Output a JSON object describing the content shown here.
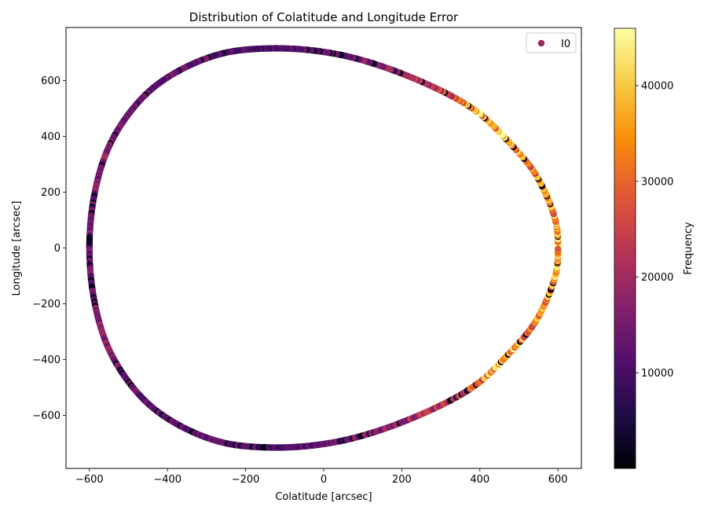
{
  "chart_data": {
    "type": "scatter",
    "title": "Distribution of Colatitude and Longitude Error",
    "xlabel": "Colatitude [arcsec]",
    "ylabel": "Longitude [arcsec]",
    "xlim": [
      -660,
      660
    ],
    "ylim": [
      -790,
      790
    ],
    "xticks": [
      -600,
      -400,
      -200,
      0,
      200,
      400,
      600
    ],
    "yticks": [
      -600,
      -400,
      -200,
      0,
      200,
      400,
      600
    ],
    "xtick_labels": [
      "−600",
      "−400",
      "−200",
      "0",
      "200",
      "400",
      "600"
    ],
    "ytick_labels": [
      "−600",
      "−400",
      "−200",
      "0",
      "200",
      "400",
      "600"
    ],
    "grid": false,
    "legend": {
      "position": "upper-right",
      "entries": [
        {
          "label": "I0",
          "color": "#9b2964"
        }
      ]
    },
    "colorbar": {
      "label": "Frequency",
      "range": [
        0,
        46000
      ],
      "ticks": [
        10000,
        20000,
        30000,
        40000
      ],
      "tick_labels": [
        "10000",
        "20000",
        "30000",
        "40000"
      ],
      "colormap": "inferno"
    },
    "series": [
      {
        "name": "I0",
        "shape": "closed loop (teardrop)",
        "profile": [
          {
            "x": 600,
            "y": 0,
            "frequency": 38000
          },
          {
            "x": 595,
            "y": 90,
            "frequency": 37000
          },
          {
            "x": 570,
            "y": 190,
            "frequency": 34000
          },
          {
            "x": 530,
            "y": 290,
            "frequency": 31000
          },
          {
            "x": 460,
            "y": 400,
            "frequency": 41000
          },
          {
            "x": 400,
            "y": 480,
            "frequency": 36000
          },
          {
            "x": 320,
            "y": 550,
            "frequency": 26000
          },
          {
            "x": 200,
            "y": 625,
            "frequency": 19000
          },
          {
            "x": 80,
            "y": 680,
            "frequency": 15000
          },
          {
            "x": -30,
            "y": 708,
            "frequency": 12000
          },
          {
            "x": -140,
            "y": 715,
            "frequency": 10000
          },
          {
            "x": -250,
            "y": 700,
            "frequency": 12000
          },
          {
            "x": -350,
            "y": 650,
            "frequency": 13000
          },
          {
            "x": -440,
            "y": 570,
            "frequency": 12000
          },
          {
            "x": -510,
            "y": 460,
            "frequency": 13000
          },
          {
            "x": -560,
            "y": 330,
            "frequency": 17000
          },
          {
            "x": -590,
            "y": 170,
            "frequency": 15000
          },
          {
            "x": -600,
            "y": 0,
            "frequency": 14000
          },
          {
            "x": -590,
            "y": -170,
            "frequency": 15000
          },
          {
            "x": -560,
            "y": -330,
            "frequency": 18000
          },
          {
            "x": -510,
            "y": -460,
            "frequency": 13000
          },
          {
            "x": -440,
            "y": -570,
            "frequency": 12000
          },
          {
            "x": -350,
            "y": -650,
            "frequency": 12000
          },
          {
            "x": -250,
            "y": -700,
            "frequency": 13000
          },
          {
            "x": -140,
            "y": -715,
            "frequency": 10000
          },
          {
            "x": -30,
            "y": -708,
            "frequency": 12000
          },
          {
            "x": 80,
            "y": -680,
            "frequency": 15000
          },
          {
            "x": 200,
            "y": -625,
            "frequency": 19000
          },
          {
            "x": 320,
            "y": -550,
            "frequency": 24000
          },
          {
            "x": 400,
            "y": -480,
            "frequency": 32000
          },
          {
            "x": 460,
            "y": -400,
            "frequency": 40000
          },
          {
            "x": 530,
            "y": -290,
            "frequency": 33000
          },
          {
            "x": 570,
            "y": -190,
            "frequency": 34000
          },
          {
            "x": 595,
            "y": -90,
            "frequency": 36000
          }
        ]
      }
    ]
  }
}
